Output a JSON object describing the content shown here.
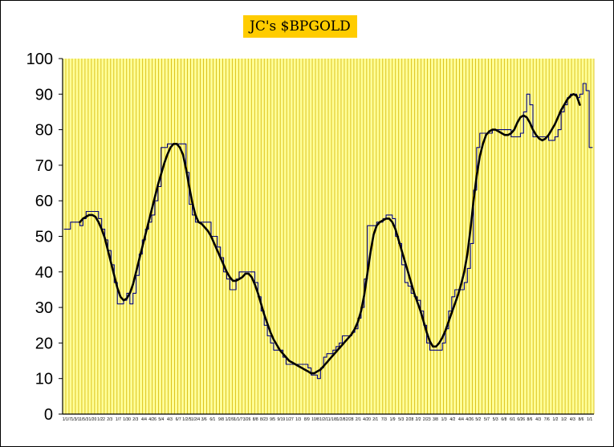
{
  "chart_data": {
    "type": "line",
    "title": "JC's $BPGOLD",
    "xlabel": "",
    "ylabel": "",
    "ylim": [
      0,
      100
    ],
    "yticks": [
      0,
      10,
      20,
      30,
      40,
      50,
      60,
      70,
      80,
      90,
      100
    ],
    "grid": "vertical",
    "legend": "none",
    "colors": {
      "plot_background": "#ffff99",
      "gridlines": "#d4b400",
      "title_background": "#ffcc00",
      "raw_line": "#000080",
      "smoothed_line": "#000000"
    },
    "x_tick_labels": [
      "1/1/7",
      "1/3/1",
      "1/5/3",
      "1/20",
      "1/22",
      "2/3",
      "1/7",
      "1/30",
      "2/3",
      "4/4",
      "4/26",
      "5/4",
      "4/3",
      "6/7",
      "1/2/5",
      "1/2/4",
      "3/6",
      "6/1",
      "9/8",
      "1/2/9",
      "1/1/7",
      "3/26",
      "8/8",
      "8/23",
      "9/5",
      "9/19",
      "1/27",
      "1/3",
      "8/9",
      "10/8",
      "1/2/1",
      "1/1/8",
      "1/2/8",
      "2/28",
      "2/1",
      "4/20",
      "2/1",
      "7/3",
      "1/9",
      "5/3",
      "2/28",
      "2/2",
      "2/23",
      "3/8",
      "1/3",
      "4/2",
      "4/4",
      "4/26",
      "5/2",
      "5/7",
      "5/3",
      "6/8",
      "6/1",
      "6/26",
      "8/6",
      "4/3",
      "7/6",
      "1/2",
      "1/2",
      "4/3",
      "8/6",
      "1/1"
    ],
    "series": [
      {
        "name": "",
        "style": "raw, stepped",
        "values": [
          52,
          52,
          54,
          54,
          54,
          53,
          55,
          57,
          57,
          57,
          57,
          55,
          52,
          49,
          46,
          42,
          37,
          31,
          31,
          32,
          34,
          31,
          34,
          39,
          45,
          49,
          52,
          54,
          56,
          60,
          64,
          75,
          75,
          76,
          76,
          76,
          76,
          76,
          76,
          68,
          59,
          56,
          54,
          54,
          54,
          54,
          54,
          50,
          50,
          47,
          44,
          40,
          38,
          35,
          35,
          38,
          40,
          40,
          40,
          40,
          40,
          37,
          33,
          29,
          25,
          22,
          20,
          18,
          18,
          18,
          16,
          14,
          14,
          14,
          14,
          14,
          14,
          14,
          13,
          11,
          11,
          10,
          13,
          16,
          17,
          17,
          18,
          19,
          20,
          22,
          22,
          22,
          23,
          24,
          27,
          30,
          38,
          53,
          53,
          53,
          54,
          54,
          55,
          56,
          56,
          55,
          50,
          48,
          42,
          37,
          36,
          34,
          33,
          32,
          29,
          25,
          20,
          18,
          18,
          18,
          18,
          20,
          24,
          29,
          33,
          35,
          35,
          35,
          37,
          41,
          48,
          63,
          75,
          79,
          79,
          79,
          79,
          80,
          80,
          80,
          80,
          80,
          80,
          78,
          78,
          78,
          79,
          85,
          90,
          87,
          78,
          78,
          78,
          78,
          78,
          77,
          77,
          78,
          80,
          85,
          87,
          89,
          90,
          90,
          89,
          90,
          93,
          91,
          75,
          75
        ]
      },
      {
        "name": "",
        "style": "smoothed",
        "values": [
          null,
          null,
          null,
          null,
          null,
          54,
          55,
          55.5,
          56,
          56,
          55.5,
          54,
          52,
          49.5,
          46,
          42.5,
          39,
          35.5,
          33,
          32,
          32.5,
          34,
          36.5,
          40,
          43.5,
          47,
          50.5,
          54,
          57.5,
          61,
          64.5,
          67.5,
          70.5,
          73,
          75,
          76,
          76,
          75,
          73,
          69,
          64,
          59.5,
          56,
          54,
          53.5,
          52.5,
          51.5,
          50,
          48,
          46,
          44,
          42,
          40,
          38.5,
          37.5,
          37.5,
          38,
          38.5,
          39.5,
          39.5,
          38.5,
          36.5,
          34,
          31,
          28,
          25.5,
          23,
          21,
          19.5,
          18,
          17,
          16,
          15,
          14.5,
          14,
          13.5,
          13,
          12.5,
          12,
          11.5,
          11.5,
          12,
          12.5,
          13.5,
          14.5,
          15.5,
          16.5,
          17.5,
          18.5,
          19.5,
          20.5,
          21.5,
          22.5,
          24,
          26,
          29,
          33.5,
          39.5,
          45.5,
          50.5,
          53,
          54,
          54.5,
          55,
          55,
          54,
          52,
          49,
          46,
          43,
          40,
          37,
          34,
          31.5,
          29,
          26,
          23,
          20.5,
          19,
          19,
          20,
          21.5,
          23.5,
          26,
          28.5,
          31,
          33.5,
          36.5,
          40,
          45,
          52,
          60,
          67,
          72.5,
          76,
          78.5,
          79.5,
          80,
          80,
          79.5,
          79,
          78.5,
          78.5,
          79,
          80,
          82,
          83.5,
          84,
          83.5,
          82,
          80,
          78.5,
          77.5,
          77,
          77.5,
          78.5,
          80,
          81.5,
          83.5,
          85.5,
          87,
          88.5,
          89.5,
          90,
          89.5,
          87
        ]
      }
    ]
  }
}
